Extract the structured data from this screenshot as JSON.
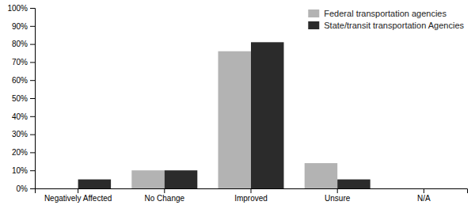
{
  "chart_data": {
    "type": "bar",
    "categories": [
      "Negatively Affected",
      "No Change",
      "Improved",
      "Unsure",
      "N/A"
    ],
    "series": [
      {
        "name": "Federal transportation agencies",
        "color": "#b3b3b3",
        "values": [
          0,
          10,
          76,
          14,
          0
        ]
      },
      {
        "name": "State/transit transportation Agencies",
        "color": "#2b2b2b",
        "values": [
          5,
          10,
          81,
          5,
          0
        ]
      }
    ],
    "ylim": [
      0,
      100
    ],
    "yticks": [
      {
        "value": 0,
        "label": "0%"
      },
      {
        "value": 10,
        "label": "10%"
      },
      {
        "value": 20,
        "label": "20%"
      },
      {
        "value": 30,
        "label": "30%"
      },
      {
        "value": 40,
        "label": "40%"
      },
      {
        "value": 50,
        "label": "50%"
      },
      {
        "value": 60,
        "label": "60%"
      },
      {
        "value": 70,
        "label": "70%"
      },
      {
        "value": 80,
        "label": "80%"
      },
      {
        "value": 90,
        "label": "90%"
      },
      {
        "value": 100,
        "label": "100%"
      }
    ],
    "grid": false,
    "legend": "upper right"
  }
}
